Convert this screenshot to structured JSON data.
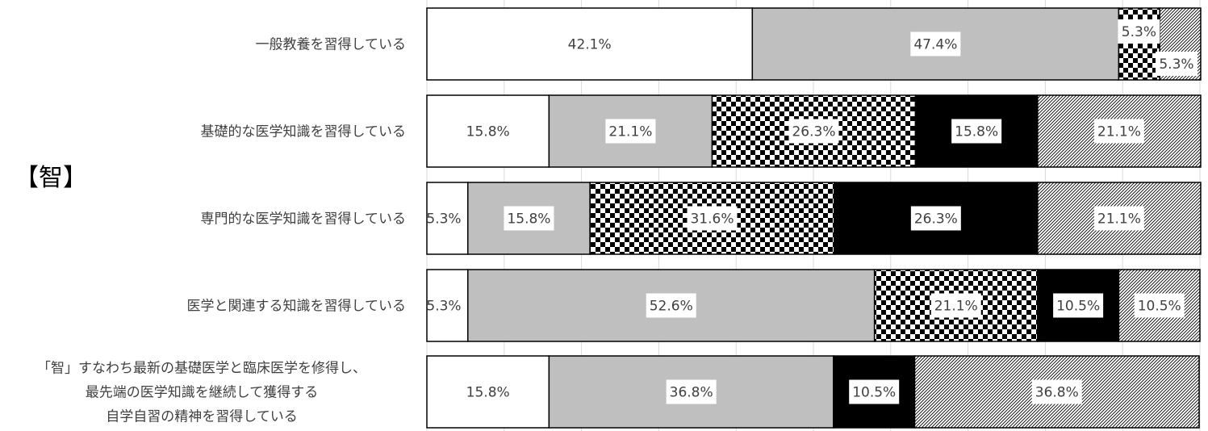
{
  "section_label": "【智】",
  "chart_data": {
    "type": "bar",
    "orientation": "horizontal",
    "stacked": true,
    "percent_stacked": true,
    "categories": [
      [
        "一般教養を習得している"
      ],
      [
        "基礎的な医学知識を習得している"
      ],
      [
        "専門的な医学知識を習得している"
      ],
      [
        "医学と関連する知識を習得している"
      ],
      [
        "「智」すなわち最新の基礎医学と臨床医学を修得し、",
        "最先端の医学知識を継続して獲得する",
        "自学自習の精神を習得している"
      ]
    ],
    "series": [
      {
        "fill": "#ffffff",
        "pattern": "none",
        "values": [
          42.1,
          15.8,
          5.3,
          5.3,
          15.8
        ]
      },
      {
        "fill": "#bfbfbf",
        "pattern": "none",
        "values": [
          47.4,
          21.1,
          15.8,
          52.6,
          36.8
        ]
      },
      {
        "fill": "#ffffff",
        "pattern": "checker",
        "values": [
          5.3,
          26.3,
          31.6,
          21.1,
          0
        ]
      },
      {
        "fill": "#000000",
        "pattern": "none",
        "values": [
          0,
          15.8,
          26.3,
          10.5,
          10.5
        ]
      },
      {
        "fill": "#ffffff",
        "pattern": "diagonal",
        "values": [
          5.3,
          21.1,
          21.1,
          10.5,
          36.8
        ]
      }
    ],
    "data_labels": [
      [
        "42.1%",
        "47.4%",
        "5.3%",
        "",
        "5.3%"
      ],
      [
        "15.8%",
        "21.1%",
        "26.3%",
        "15.8%",
        "21.1%"
      ],
      [
        "5.3%",
        "15.8%",
        "31.6%",
        "26.3%",
        "21.1%"
      ],
      [
        "5.3%",
        "52.6%",
        "21.1%",
        "10.5%",
        "10.5%"
      ],
      [
        "15.8%",
        "36.8%",
        "",
        "10.5%",
        "36.8%"
      ]
    ],
    "xlim": [
      0,
      100
    ],
    "grid": true,
    "legend": "none"
  }
}
